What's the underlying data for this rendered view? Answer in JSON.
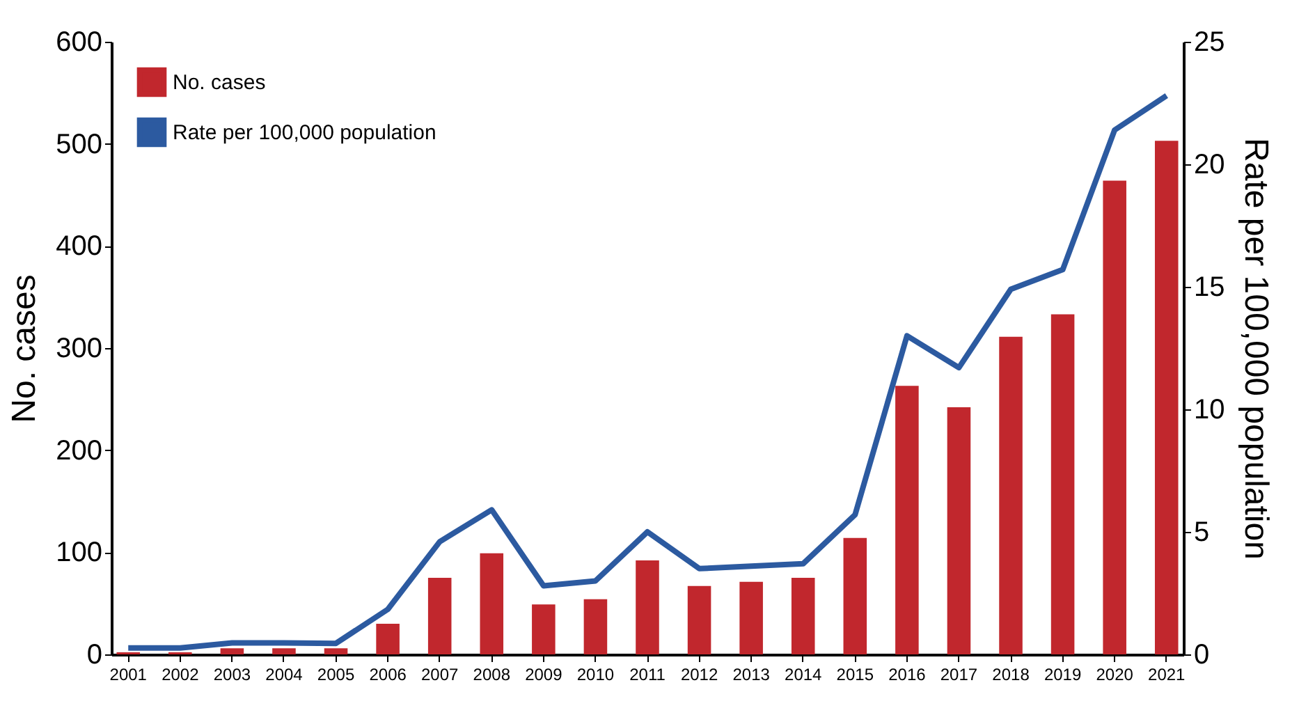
{
  "chart_data": {
    "type": "bar",
    "categories": [
      "2001",
      "2002",
      "2003",
      "2004",
      "2005",
      "2006",
      "2007",
      "2008",
      "2009",
      "2010",
      "2011",
      "2012",
      "2013",
      "2014",
      "2015",
      "2016",
      "2017",
      "2018",
      "2019",
      "2020",
      "2021"
    ],
    "series": [
      {
        "name": "No. cases",
        "color": "#c1272d",
        "values": [
          2,
          2,
          6,
          6,
          6,
          30,
          75,
          99,
          49,
          54,
          92,
          67,
          71,
          75,
          114,
          263,
          242,
          311,
          333,
          464,
          503
        ]
      },
      {
        "name": "Rate per 100,000 population",
        "type": "line",
        "axis": "y2",
        "color": "#2c5aa0",
        "values": [
          0.26,
          0.26,
          0.47,
          0.47,
          0.45,
          1.84,
          4.6,
          5.9,
          2.8,
          3.0,
          5.0,
          3.5,
          3.6,
          3.7,
          5.7,
          13.0,
          11.7,
          14.9,
          15.7,
          21.4,
          22.8
        ]
      }
    ],
    "ylabel": "No. cases",
    "y2label": "Rate per 100,000 population",
    "ylim": [
      0,
      600
    ],
    "yticks": [
      0,
      100,
      200,
      300,
      400,
      500,
      600
    ],
    "y2lim": [
      0,
      25
    ],
    "y2ticks": [
      0,
      5,
      10,
      15,
      20,
      25
    ],
    "legend": "top left",
    "grid": false
  }
}
